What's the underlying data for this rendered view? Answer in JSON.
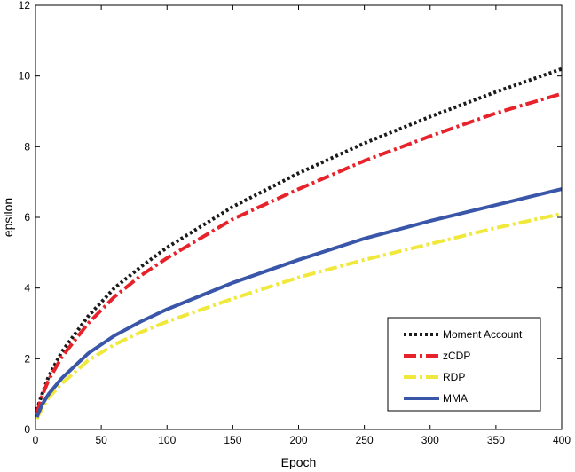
{
  "chart_data": {
    "type": "line",
    "title": "",
    "xlabel": "Epoch",
    "ylabel": "epsilon",
    "xlim": [
      0,
      400
    ],
    "ylim": [
      0,
      12
    ],
    "xticks": [
      "0",
      "50",
      "100",
      "150",
      "200",
      "250",
      "300",
      "350",
      "400"
    ],
    "yticks": [
      "0",
      "2",
      "4",
      "6",
      "8",
      "10",
      "12"
    ],
    "grid": false,
    "legend_position": "bottom-right",
    "x": [
      1,
      5,
      10,
      20,
      40,
      60,
      80,
      100,
      150,
      200,
      250,
      300,
      350,
      400
    ],
    "series": [
      {
        "name": "Moment Account",
        "color": "#1a1a1a",
        "style": "dotted",
        "values": [
          0.55,
          1.0,
          1.5,
          2.2,
          3.2,
          4.0,
          4.6,
          5.15,
          6.3,
          7.25,
          8.1,
          8.85,
          9.55,
          10.2
        ]
      },
      {
        "name": "zCDP",
        "color": "#e8222a",
        "style": "dashdot",
        "values": [
          0.45,
          0.95,
          1.4,
          2.05,
          3.0,
          3.75,
          4.35,
          4.85,
          5.95,
          6.8,
          7.6,
          8.3,
          8.95,
          9.5
        ]
      },
      {
        "name": "RDP",
        "color": "#f0e83a",
        "style": "dashdot",
        "values": [
          0.3,
          0.6,
          0.9,
          1.3,
          1.95,
          2.4,
          2.75,
          3.05,
          3.7,
          4.3,
          4.8,
          5.25,
          5.7,
          6.1
        ]
      },
      {
        "name": "MMA",
        "color": "#3a56a8",
        "style": "solid",
        "values": [
          0.35,
          0.7,
          1.0,
          1.45,
          2.15,
          2.65,
          3.05,
          3.4,
          4.15,
          4.8,
          5.4,
          5.9,
          6.35,
          6.8
        ]
      }
    ]
  }
}
